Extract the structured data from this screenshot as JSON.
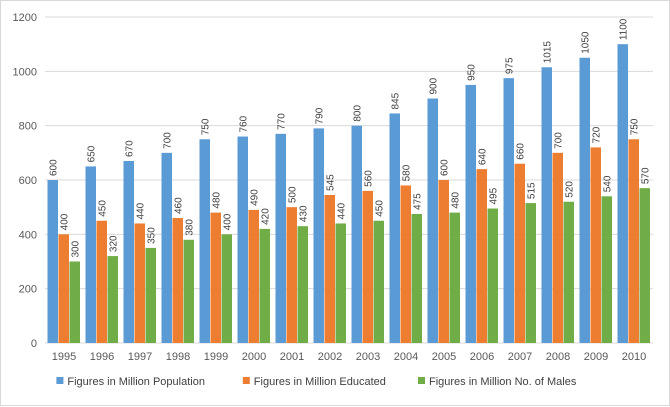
{
  "chart_data": {
    "type": "bar",
    "title": "",
    "xlabel": "",
    "ylabel": "",
    "ylim": [
      0,
      1200
    ],
    "yticks": [
      0,
      200,
      400,
      600,
      800,
      1000,
      1200
    ],
    "grid": true,
    "legend_position": "bottom",
    "categories": [
      "1995",
      "1996",
      "1997",
      "1998",
      "1999",
      "2000",
      "2001",
      "2002",
      "2003",
      "2004",
      "2005",
      "2006",
      "2007",
      "2008",
      "2009",
      "2010"
    ],
    "series": [
      {
        "name": "Figures in Million Population",
        "color": "#5b9bd5",
        "values": [
          600,
          650,
          670,
          700,
          750,
          760,
          770,
          790,
          800,
          845,
          900,
          950,
          975,
          1015,
          1050,
          1100
        ]
      },
      {
        "name": "Figures in Million Educated",
        "color": "#ed7d31",
        "values": [
          400,
          450,
          440,
          460,
          480,
          490,
          500,
          545,
          560,
          580,
          600,
          640,
          660,
          700,
          720,
          750
        ]
      },
      {
        "name": "Figures in Million No. of Males",
        "color": "#70ad47",
        "values": [
          300,
          320,
          350,
          380,
          400,
          420,
          430,
          440,
          450,
          475,
          480,
          495,
          515,
          520,
          540,
          570
        ]
      }
    ]
  }
}
